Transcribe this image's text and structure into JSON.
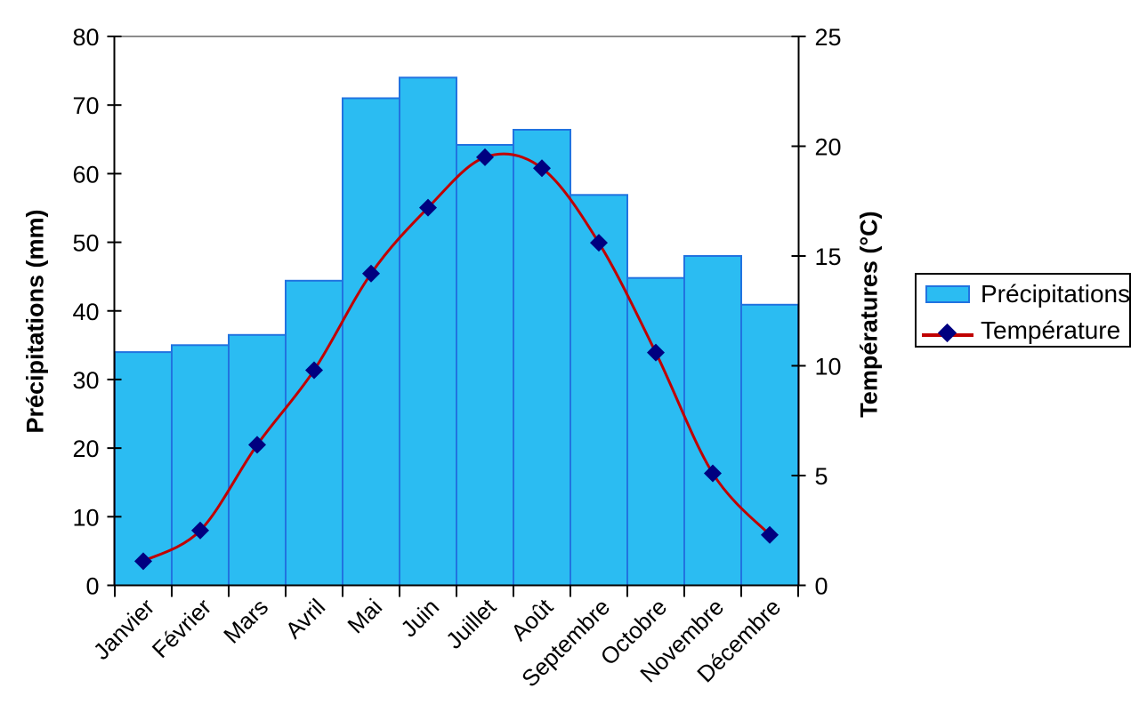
{
  "chart_data": {
    "type": "bar",
    "subtype": "bar+smooth-line combo (climograph)",
    "categories": [
      "Janvier",
      "Février",
      "Mars",
      "Avril",
      "Mai",
      "Juin",
      "Juillet",
      "Août",
      "Septembre",
      "Octobre",
      "Novembre",
      "Décembre"
    ],
    "series": [
      {
        "name": "Précipitations",
        "type": "bar",
        "axis": "left",
        "unit": "mm",
        "values": [
          34,
          35,
          36.5,
          44.4,
          71,
          74,
          64.2,
          66.4,
          56.9,
          44.8,
          48,
          40.9
        ]
      },
      {
        "name": "Température",
        "type": "line",
        "axis": "right",
        "unit": "°C",
        "smooth": true,
        "marker": "diamond",
        "values": [
          1.1,
          2.5,
          6.4,
          9.8,
          14.2,
          17.2,
          19.5,
          19.0,
          15.6,
          10.6,
          5.1,
          2.3
        ]
      }
    ],
    "left_axis": {
      "label": "Précipitations (mm)",
      "min": 0,
      "max": 80,
      "tick_step": 10
    },
    "right_axis": {
      "label": "Températures (°C)",
      "min": 0,
      "max": 25,
      "tick_step": 5
    },
    "xlabel": "",
    "title": "",
    "grid": false,
    "legend_position": "right"
  },
  "colors": {
    "bar_fill": "#2BBCF2",
    "bar_border": "#2173E0",
    "line": "#C00000",
    "marker": "#000080",
    "axis": "#000000",
    "plot_top_border": "#8C8C8C",
    "background": "#FFFFFF"
  }
}
